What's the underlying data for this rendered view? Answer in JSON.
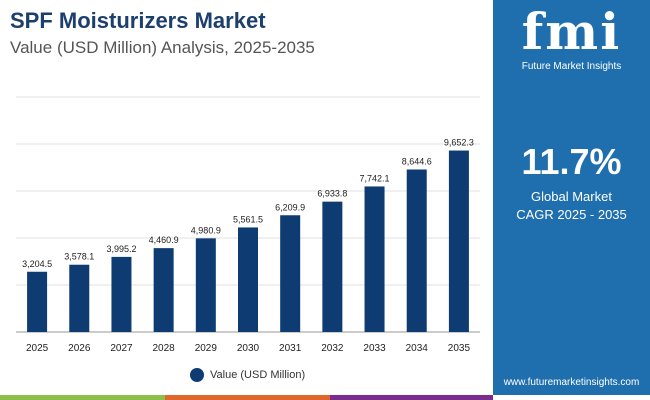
{
  "header": {
    "title": "SPF Moisturizers Market",
    "subtitle": "Value (USD Million) Analysis, 2025-2035"
  },
  "panel": {
    "logo": "fmi",
    "logo_sub": "Future Market Insights",
    "cagr": "11.7%",
    "cagr_label1": "Global Market",
    "cagr_label2": "CAGR 2025 - 2035",
    "website": "www.futuremarketinsights.com"
  },
  "colors": {
    "bar": "#0d3b72",
    "panel": "#1f6fae",
    "stripes": [
      "#8cc04b",
      "#e0672a",
      "#7b2d8e"
    ]
  },
  "chart_data": {
    "type": "bar",
    "title": "SPF Moisturizers Market",
    "xlabel": "",
    "ylabel": "",
    "ylim": [
      0,
      12500
    ],
    "grid": true,
    "legend": "bottom-center",
    "categories": [
      "2025",
      "2026",
      "2027",
      "2028",
      "2029",
      "2030",
      "2031",
      "2032",
      "2033",
      "2034",
      "2035"
    ],
    "series": [
      {
        "name": "Value (USD Million)",
        "values": [
          3204.5,
          3578.1,
          3995.2,
          4460.9,
          4980.9,
          5561.5,
          6209.9,
          6933.8,
          7742.1,
          8644.6,
          9652.3
        ]
      }
    ],
    "labels": [
      "3,204.5",
      "3,578.1",
      "3,995.2",
      "4,460.9",
      "4,980.9",
      "5,561.5",
      "6,209.9",
      "6,933.8",
      "7,742.1",
      "8,644.6",
      "9,652.3"
    ]
  }
}
